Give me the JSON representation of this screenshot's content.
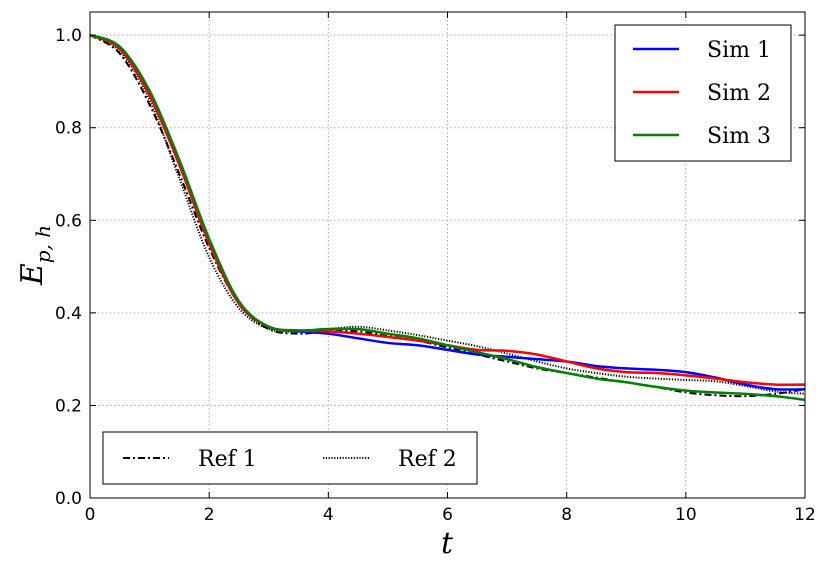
{
  "chart_data": {
    "type": "line",
    "xlabel": "t",
    "ylabel": "E",
    "ylabel_sub": "p, h",
    "xlim": [
      0,
      12
    ],
    "ylim": [
      0.0,
      1.05
    ],
    "xticks": [
      0,
      2,
      4,
      6,
      8,
      10,
      12
    ],
    "xtick_labels": [
      "0",
      "2",
      "4",
      "6",
      "8",
      "10",
      "12"
    ],
    "yticks": [
      0.0,
      0.2,
      0.4,
      0.6,
      0.8,
      1.0
    ],
    "ytick_labels": [
      "0.0",
      "0.2",
      "0.4",
      "0.6",
      "0.8",
      "1.0"
    ],
    "grid": true,
    "legends": [
      {
        "placement": "top-right",
        "entries": [
          "Sim 1",
          "Sim 2",
          "Sim 3"
        ]
      },
      {
        "placement": "bottom-left",
        "entries": [
          "Ref 1",
          "Ref 2"
        ]
      }
    ],
    "series": [
      {
        "name": "Sim 1",
        "color": "#0000ff",
        "style": "solid",
        "x": [
          0,
          0.5,
          1.0,
          1.5,
          2.0,
          2.5,
          3.0,
          3.5,
          4.0,
          4.5,
          5.0,
          5.5,
          6.0,
          6.5,
          7.0,
          7.5,
          8.0,
          8.5,
          9.0,
          9.5,
          10.0,
          10.5,
          11.0,
          11.5,
          12.0
        ],
        "y": [
          1.0,
          0.97,
          0.87,
          0.72,
          0.55,
          0.42,
          0.37,
          0.36,
          0.355,
          0.345,
          0.335,
          0.33,
          0.32,
          0.31,
          0.305,
          0.3,
          0.295,
          0.285,
          0.28,
          0.277,
          0.272,
          0.26,
          0.245,
          0.235,
          0.235
        ]
      },
      {
        "name": "Sim 2",
        "color": "#ff0000",
        "style": "solid",
        "x": [
          0,
          0.5,
          1.0,
          1.5,
          2.0,
          2.5,
          3.0,
          3.5,
          4.0,
          4.5,
          5.0,
          5.5,
          6.0,
          6.5,
          7.0,
          7.5,
          8.0,
          8.5,
          9.0,
          9.5,
          10.0,
          10.5,
          11.0,
          11.5,
          12.0
        ],
        "y": [
          1.0,
          0.97,
          0.87,
          0.72,
          0.55,
          0.42,
          0.37,
          0.362,
          0.36,
          0.355,
          0.348,
          0.34,
          0.33,
          0.32,
          0.318,
          0.31,
          0.295,
          0.28,
          0.272,
          0.27,
          0.265,
          0.258,
          0.25,
          0.245,
          0.245
        ]
      },
      {
        "name": "Sim 3",
        "color": "#008000",
        "style": "solid",
        "x": [
          0,
          0.5,
          1.0,
          1.5,
          2.0,
          2.5,
          3.0,
          3.5,
          4.0,
          4.5,
          5.0,
          5.5,
          6.0,
          6.5,
          7.0,
          7.5,
          8.0,
          8.5,
          9.0,
          9.5,
          10.0,
          10.5,
          11.0,
          11.5,
          12.0
        ],
        "y": [
          1.0,
          0.975,
          0.88,
          0.73,
          0.56,
          0.425,
          0.37,
          0.362,
          0.365,
          0.365,
          0.355,
          0.345,
          0.33,
          0.315,
          0.3,
          0.283,
          0.27,
          0.258,
          0.25,
          0.24,
          0.232,
          0.228,
          0.225,
          0.22,
          0.212
        ]
      },
      {
        "name": "Ref 1",
        "color": "#000000",
        "style": "dashdot",
        "x": [
          0,
          0.5,
          1.0,
          1.5,
          2.0,
          2.5,
          3.0,
          3.5,
          4.0,
          4.5,
          5.0,
          5.5,
          6.0,
          6.5,
          7.0,
          7.5,
          8.0,
          8.5,
          9.0,
          9.5,
          10.0,
          10.5,
          11.0,
          11.5,
          12.0
        ],
        "y": [
          1.0,
          0.96,
          0.85,
          0.7,
          0.54,
          0.42,
          0.365,
          0.355,
          0.36,
          0.36,
          0.35,
          0.34,
          0.325,
          0.31,
          0.295,
          0.28,
          0.27,
          0.26,
          0.25,
          0.24,
          0.228,
          0.222,
          0.22,
          0.225,
          0.235
        ]
      },
      {
        "name": "Ref 2",
        "color": "#000000",
        "style": "dotted",
        "x": [
          0,
          0.5,
          1.0,
          1.5,
          2.0,
          2.5,
          3.0,
          3.5,
          4.0,
          4.5,
          5.0,
          5.5,
          6.0,
          6.5,
          7.0,
          7.5,
          8.0,
          8.5,
          9.0,
          9.5,
          10.0,
          10.5,
          11.0,
          11.5,
          12.0
        ],
        "y": [
          1.0,
          0.965,
          0.86,
          0.69,
          0.52,
          0.41,
          0.365,
          0.36,
          0.365,
          0.37,
          0.362,
          0.352,
          0.34,
          0.328,
          0.312,
          0.295,
          0.28,
          0.27,
          0.262,
          0.258,
          0.255,
          0.252,
          0.242,
          0.23,
          0.225
        ]
      }
    ]
  }
}
